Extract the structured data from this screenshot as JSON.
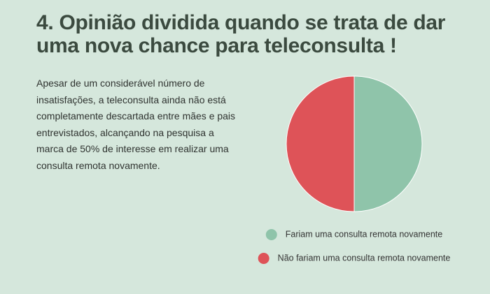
{
  "title": "4. Opinião dividida quando se trata de dar uma nova chance para teleconsulta !",
  "body": "Apesar de um considerável número de insatisfações, a teleconsulta ainda não está completamente descartada entre mães e pais entrevistados, alcançando na pesquisa a marca de 50% de interesse em realizar uma consulta remota novamente.",
  "chart_data": {
    "type": "pie",
    "categories": [
      "Fariam uma consulta remota novamente",
      "Não fariam uma consulta remota novamente"
    ],
    "values": [
      50,
      50
    ],
    "colors": [
      "#8fc4aa",
      "#de5358"
    ]
  }
}
